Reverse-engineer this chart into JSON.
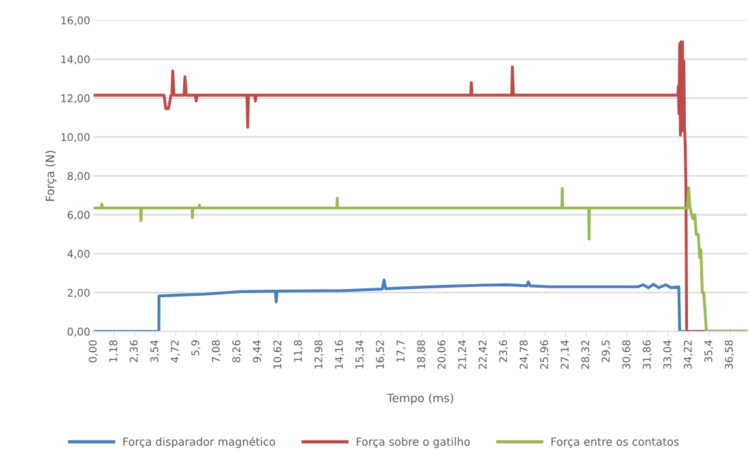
{
  "chart_data": {
    "type": "line",
    "xlabel": "Tempo (ms)",
    "ylabel": "Força (N)",
    "xlim": [
      0,
      37.6
    ],
    "ylim": [
      0,
      16
    ],
    "xticks": [
      {
        "value": 0,
        "label": "0,00"
      },
      {
        "value": 1.18,
        "label": "1,18"
      },
      {
        "value": 2.36,
        "label": "2,36"
      },
      {
        "value": 3.54,
        "label": "3,54"
      },
      {
        "value": 4.72,
        "label": "4,72"
      },
      {
        "value": 5.9,
        "label": "5,9"
      },
      {
        "value": 7.08,
        "label": "7,08"
      },
      {
        "value": 8.26,
        "label": "8,26"
      },
      {
        "value": 9.44,
        "label": "9,44"
      },
      {
        "value": 10.62,
        "label": "10,62"
      },
      {
        "value": 11.8,
        "label": "11,8"
      },
      {
        "value": 12.98,
        "label": "12,98"
      },
      {
        "value": 14.16,
        "label": "14,16"
      },
      {
        "value": 15.34,
        "label": "15,34"
      },
      {
        "value": 16.52,
        "label": "16,52"
      },
      {
        "value": 17.7,
        "label": "17,7"
      },
      {
        "value": 18.88,
        "label": "18,88"
      },
      {
        "value": 20.06,
        "label": "20,06"
      },
      {
        "value": 21.24,
        "label": "21,24"
      },
      {
        "value": 22.42,
        "label": "22,42"
      },
      {
        "value": 23.6,
        "label": "23,6"
      },
      {
        "value": 24.78,
        "label": "24,78"
      },
      {
        "value": 25.96,
        "label": "25,96"
      },
      {
        "value": 27.14,
        "label": "27,14"
      },
      {
        "value": 28.32,
        "label": "28,32"
      },
      {
        "value": 29.5,
        "label": "29,5"
      },
      {
        "value": 30.68,
        "label": "30,68"
      },
      {
        "value": 31.86,
        "label": "31,86"
      },
      {
        "value": 33.04,
        "label": "33,04"
      },
      {
        "value": 34.22,
        "label": "34,22"
      },
      {
        "value": 35.4,
        "label": "35,4"
      },
      {
        "value": 36.58,
        "label": "36,58"
      }
    ],
    "yticks": [
      {
        "value": 0,
        "label": "0,00"
      },
      {
        "value": 2,
        "label": "2,00"
      },
      {
        "value": 4,
        "label": "4,00"
      },
      {
        "value": 6,
        "label": "6,00"
      },
      {
        "value": 8,
        "label": "8,00"
      },
      {
        "value": 10,
        "label": "10,00"
      },
      {
        "value": 12,
        "label": "12,00"
      },
      {
        "value": 14,
        "label": "14,00"
      },
      {
        "value": 16,
        "label": "16,00"
      }
    ],
    "grid": "y",
    "legend": "bottom",
    "marker": "none",
    "line_style": "solid",
    "series": [
      {
        "name": "Força disparador magnético",
        "color": "#4a7ebb",
        "x": [
          0,
          3.75,
          3.76,
          6.4,
          8.4,
          10.45,
          10.5,
          10.55,
          14.3,
          16.6,
          16.7,
          16.8,
          18.3,
          20.2,
          22.2,
          23.8,
          24.9,
          25.0,
          25.1,
          26.2,
          31.3,
          31.6,
          31.9,
          32.2,
          32.5,
          32.9,
          33.2,
          33.65,
          33.7,
          37.6
        ],
        "values": [
          0,
          0,
          1.83,
          1.92,
          2.05,
          2.08,
          1.52,
          2.08,
          2.1,
          2.18,
          2.65,
          2.2,
          2.26,
          2.32,
          2.38,
          2.4,
          2.35,
          2.55,
          2.35,
          2.3,
          2.3,
          2.4,
          2.25,
          2.42,
          2.25,
          2.4,
          2.25,
          2.3,
          0,
          0
        ]
      },
      {
        "name": "Força sobre o gatilho",
        "color": "#be4b48",
        "x": [
          0,
          4.05,
          4.15,
          4.3,
          4.45,
          4.5,
          4.55,
          4.62,
          5.2,
          5.25,
          5.33,
          5.85,
          5.9,
          5.95,
          8.82,
          8.86,
          8.9,
          9.26,
          9.3,
          9.34,
          21.68,
          21.72,
          21.76,
          24.04,
          24.08,
          24.14,
          33.6,
          33.62,
          33.66,
          33.7,
          33.74,
          33.78,
          33.82,
          33.86,
          33.9,
          33.94,
          33.98,
          34.02,
          34.06,
          34.1,
          37.6
        ],
        "values": [
          12.15,
          12.15,
          11.45,
          11.45,
          12.15,
          12.15,
          13.4,
          12.15,
          12.15,
          13.1,
          12.15,
          12.15,
          11.85,
          12.15,
          12.15,
          10.5,
          12.15,
          12.15,
          11.85,
          12.15,
          12.15,
          12.8,
          12.15,
          12.15,
          13.6,
          12.15,
          12.15,
          12.6,
          11.2,
          14.8,
          10.1,
          14.9,
          10.3,
          14.9,
          10.8,
          13.9,
          10.5,
          9.5,
          7.4,
          0,
          0
        ]
      },
      {
        "name": "Força entre os contatos",
        "color": "#98b954",
        "x": [
          0,
          0.45,
          0.47,
          0.5,
          2.7,
          2.72,
          2.75,
          5.66,
          5.68,
          5.7,
          6.06,
          6.08,
          6.1,
          13.99,
          14.01,
          14.03,
          26.93,
          26.95,
          26.97,
          28.47,
          28.49,
          28.51,
          34.15,
          34.21,
          34.29,
          34.45,
          34.57,
          34.65,
          34.77,
          34.85,
          34.92,
          35.0,
          35.08,
          35.24,
          37.6
        ],
        "values": [
          6.35,
          6.35,
          6.55,
          6.35,
          6.35,
          5.7,
          6.35,
          6.35,
          5.85,
          6.35,
          6.35,
          6.5,
          6.35,
          6.35,
          6.85,
          6.35,
          6.35,
          7.35,
          6.35,
          6.35,
          4.75,
          6.35,
          6.35,
          7.4,
          6.4,
          5.8,
          6.0,
          5.0,
          5.0,
          3.8,
          4.2,
          2.0,
          2.0,
          0,
          0
        ]
      }
    ]
  }
}
